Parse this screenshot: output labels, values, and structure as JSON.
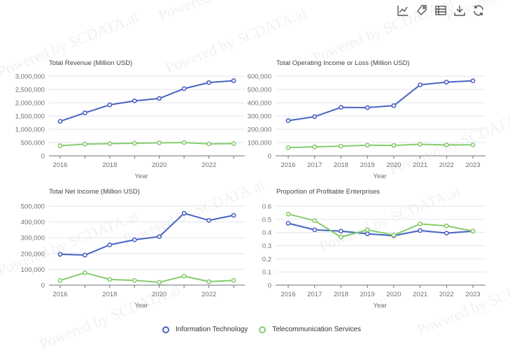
{
  "watermark": "Powered by SCDATA.ai",
  "toolbar": {
    "icons": [
      "line-chart-icon",
      "tag-icon",
      "data-view-icon",
      "download-icon",
      "refresh-icon"
    ]
  },
  "colors": {
    "it": "#4a63c2",
    "telecom": "#86cc6e"
  },
  "legend": [
    "Information Technology",
    "Telecommunication Services"
  ],
  "chart_data": [
    {
      "type": "line",
      "title": "Total Revenue (Million USD)",
      "xlabel": "Year",
      "x": [
        2016,
        2017,
        2018,
        2019,
        2020,
        2021,
        2022,
        2023
      ],
      "x_ticks": [
        2016,
        2018,
        2020,
        2022
      ],
      "ylim": [
        0,
        3000000
      ],
      "y_ticks": [
        0,
        500000,
        1000000,
        1500000,
        2000000,
        2500000,
        3000000
      ],
      "y_tick_labels": [
        "0",
        "500,000",
        "1,000,000",
        "1,500,000",
        "2,000,000",
        "2,500,000",
        "3,000,000"
      ],
      "series": [
        {
          "name": "Information Technology",
          "values": [
            1300000,
            1620000,
            1920000,
            2070000,
            2160000,
            2530000,
            2760000,
            2830000
          ]
        },
        {
          "name": "Telecommunication Services",
          "values": [
            380000,
            440000,
            460000,
            475000,
            490000,
            500000,
            450000,
            460000
          ]
        }
      ]
    },
    {
      "type": "line",
      "title": "Total Operating Income or Loss (Million USD)",
      "xlabel": "Year",
      "x": [
        2016,
        2017,
        2018,
        2019,
        2020,
        2021,
        2022,
        2023
      ],
      "x_ticks": [
        2016,
        2017,
        2018,
        2019,
        2020,
        2021,
        2022,
        2023
      ],
      "ylim": [
        0,
        600000
      ],
      "y_ticks": [
        0,
        100000,
        200000,
        300000,
        400000,
        500000,
        600000
      ],
      "y_tick_labels": [
        "0",
        "100,000",
        "200,000",
        "300,000",
        "400,000",
        "500,000",
        "600,000"
      ],
      "series": [
        {
          "name": "Information Technology",
          "values": [
            265000,
            295000,
            365000,
            363000,
            378000,
            535000,
            555000,
            565000
          ]
        },
        {
          "name": "Telecommunication Services",
          "values": [
            62000,
            68000,
            73000,
            80000,
            78000,
            87000,
            82000,
            83000
          ]
        }
      ]
    },
    {
      "type": "line",
      "title": "Total Net Income (Million USD)",
      "xlabel": "Year",
      "x": [
        2016,
        2017,
        2018,
        2019,
        2020,
        2021,
        2022,
        2023
      ],
      "x_ticks": [
        2016,
        2018,
        2020,
        2022
      ],
      "ylim": [
        0,
        500000
      ],
      "y_ticks": [
        0,
        100000,
        200000,
        300000,
        400000,
        500000
      ],
      "y_tick_labels": [
        "0",
        "100,000",
        "200,000",
        "300,000",
        "400,000",
        "500,000"
      ],
      "series": [
        {
          "name": "Information Technology",
          "values": [
            195000,
            190000,
            255000,
            287000,
            307000,
            455000,
            410000,
            442000
          ]
        },
        {
          "name": "Telecommunication Services",
          "values": [
            30000,
            78000,
            36000,
            30000,
            18000,
            57000,
            22000,
            30000
          ]
        }
      ]
    },
    {
      "type": "line",
      "title": "Proportion of Profitable Enterprises",
      "xlabel": "Year",
      "x": [
        2016,
        2017,
        2018,
        2019,
        2020,
        2021,
        2022,
        2023
      ],
      "x_ticks": [
        2016,
        2017,
        2018,
        2019,
        2020,
        2021,
        2022,
        2023
      ],
      "ylim": [
        0,
        0.6
      ],
      "y_ticks": [
        0,
        0.1,
        0.2,
        0.3,
        0.4,
        0.5,
        0.6
      ],
      "y_tick_labels": [
        "0",
        "0.1",
        "0.2",
        "0.3",
        "0.4",
        "0.5",
        "0.6"
      ],
      "series": [
        {
          "name": "Information Technology",
          "values": [
            0.47,
            0.42,
            0.41,
            0.39,
            0.375,
            0.415,
            0.395,
            0.41
          ]
        },
        {
          "name": "Telecommunication Services",
          "values": [
            0.54,
            0.49,
            0.365,
            0.42,
            0.38,
            0.465,
            0.45,
            0.41
          ]
        }
      ]
    }
  ]
}
